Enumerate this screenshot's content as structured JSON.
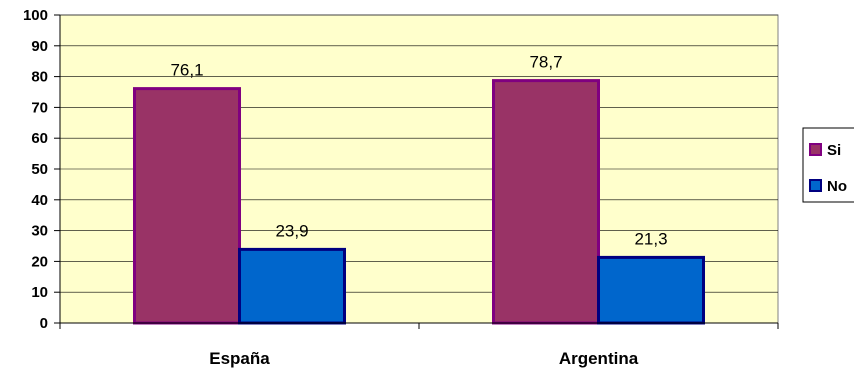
{
  "chart_data": {
    "type": "bar",
    "categories": [
      "España",
      "Argentina"
    ],
    "series": [
      {
        "name": "Si",
        "values": [
          76.1,
          78.7
        ],
        "color": "#993366",
        "border": "#800080"
      },
      {
        "name": "No",
        "values": [
          23.9,
          21.3
        ],
        "color": "#0066CC",
        "border": "#000080"
      }
    ],
    "data_labels": [
      [
        "76,1",
        "78,7"
      ],
      [
        "23,9",
        "21,3"
      ]
    ],
    "y_ticks": [
      "0",
      "10",
      "20",
      "30",
      "40",
      "50",
      "60",
      "70",
      "80",
      "90",
      "100"
    ],
    "ylim": [
      0,
      100
    ],
    "grid": true,
    "legend_position": "right",
    "plot_background": "#FFFFCC",
    "title": "",
    "xlabel": "",
    "ylabel": ""
  }
}
